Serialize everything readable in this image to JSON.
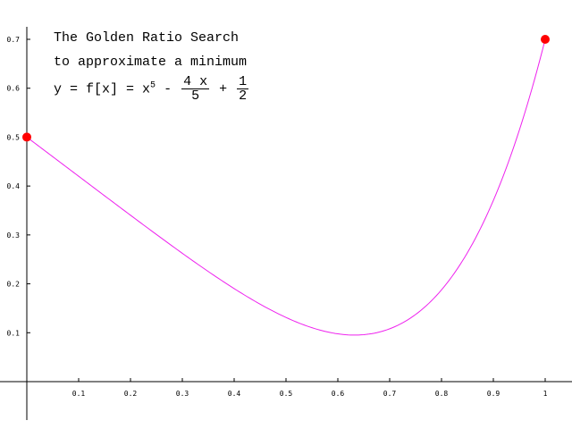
{
  "chart_data": {
    "type": "line",
    "title_lines": [
      "The Golden Ratio Search",
      "to approximate a minimum"
    ],
    "formula": {
      "lhs": "y = f[x] = x",
      "exponent": "5",
      "minus": "-",
      "frac1_num": "4 x",
      "frac1_den": "5",
      "plus": "+",
      "frac2_num": "1",
      "frac2_den": "2"
    },
    "function": "x^5 - 4x/5 + 1/2",
    "xlim": [
      0,
      1
    ],
    "ylim": [
      0,
      0.7
    ],
    "x_ticks": [
      "0.1",
      "0.2",
      "0.3",
      "0.4",
      "0.5",
      "0.6",
      "0.7",
      "0.8",
      "0.9",
      "1"
    ],
    "y_ticks": [
      "0.1",
      "0.2",
      "0.3",
      "0.4",
      "0.5",
      "0.6",
      "0.7"
    ],
    "series": [
      {
        "x": [
          0,
          0.1,
          0.2,
          0.3,
          0.4,
          0.5,
          0.55,
          0.6,
          0.64,
          0.7,
          0.75,
          0.8,
          0.85,
          0.9,
          0.95,
          1.0
        ],
        "y": [
          0.5,
          0.42,
          0.3403,
          0.2624,
          0.1902,
          0.1313,
          0.1103,
          0.0978,
          0.0953,
          0.1081,
          0.1373,
          0.1877,
          0.2637,
          0.3705,
          0.5138,
          0.7
        ]
      }
    ],
    "points": [
      {
        "x": 0,
        "y": 0.5
      },
      {
        "x": 1,
        "y": 0.7
      }
    ],
    "colors": {
      "curve": "#ee22ee",
      "point": "#ff0000",
      "axis": "#000000"
    }
  }
}
